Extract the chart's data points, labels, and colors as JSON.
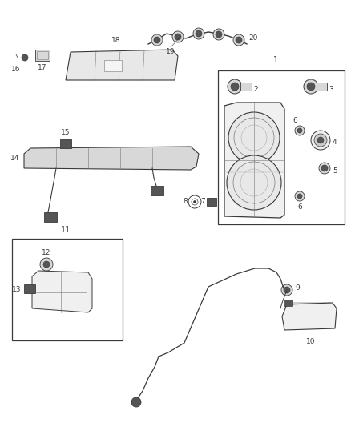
{
  "bg_color": "#ffffff",
  "fig_width": 4.38,
  "fig_height": 5.33,
  "dpi": 100,
  "gray": "#3a3a3a",
  "lgray": "#777777",
  "vlgray": "#aaaaaa",
  "fillgray": "#d8d8d8",
  "darkfill": "#555555"
}
